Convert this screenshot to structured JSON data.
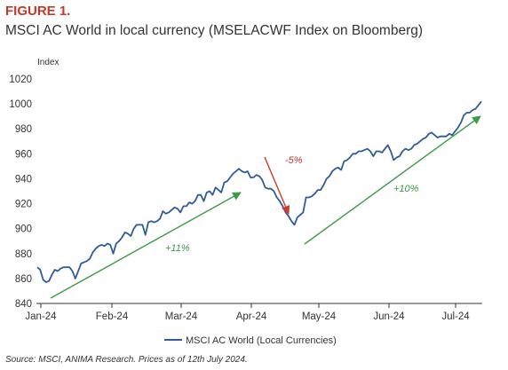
{
  "figure": {
    "label": "FIGURE 1.",
    "title": "MSCI AC World in local currency (MSELACWF Index on Bloomberg)",
    "source": "Source: MSCI, ANIMA Research. Prices as of 12th July 2024."
  },
  "colors": {
    "line": "#2f5b9a",
    "up_arrow": "#3e9a48",
    "down_arrow": "#d03a2e",
    "label_red": "#c0392b"
  },
  "chart_data": {
    "type": "line",
    "ylabel": "Index",
    "ylim": [
      840,
      1020
    ],
    "yticks": [
      840,
      860,
      880,
      900,
      920,
      940,
      960,
      980,
      1000,
      1020
    ],
    "xticks": [
      "Jan-24",
      "Feb-24",
      "Mar-24",
      "Apr-24",
      "May-24",
      "Jun-24",
      "Jul-24"
    ],
    "grid": false,
    "legend": "bottom-center",
    "series": [
      {
        "name": "MSCI AC World (Local Currencies)",
        "values": [
          869,
          867,
          859,
          857,
          858,
          863,
          867,
          866,
          868,
          869,
          869,
          869,
          866,
          860,
          866,
          872,
          873,
          874,
          876,
          881,
          884,
          886,
          887,
          886,
          888,
          887,
          880,
          888,
          890,
          893,
          897,
          896,
          894,
          900,
          903,
          903,
          903,
          895,
          905,
          906,
          905,
          906,
          908,
          914,
          912,
          913,
          915,
          917,
          916,
          913,
          918,
          918,
          921,
          920,
          922,
          927,
          927,
          922,
          929,
          930,
          927,
          933,
          931,
          929,
          937,
          938,
          941,
          944,
          946,
          948,
          946,
          945,
          946,
          941,
          941,
          943,
          942,
          939,
          933,
          932,
          932,
          930,
          925,
          922,
          918,
          913,
          910,
          906,
          903,
          909,
          911,
          913,
          925,
          925,
          926,
          928,
          931,
          931,
          935,
          940,
          942,
          946,
          948,
          949,
          947,
          954,
          955,
          957,
          960,
          960,
          962,
          962,
          963,
          964,
          962,
          958,
          962,
          962,
          961,
          964,
          967,
          962,
          955,
          957,
          958,
          962,
          964,
          963,
          964,
          967,
          968,
          970,
          972,
          973,
          976,
          977,
          975,
          973,
          974,
          974,
          974,
          976,
          975,
          978,
          981,
          985,
          991,
          993,
          993,
          995,
          996,
          999,
          1002
        ]
      }
    ],
    "annotations": [
      {
        "text": "+11%",
        "color": "up",
        "arrow_from": [
          "Jan-24",
          844
        ],
        "arrow_to": [
          "Mar-24 end",
          930
        ]
      },
      {
        "text": "-5%",
        "color": "down",
        "arrow_from": [
          "Apr-24",
          958
        ],
        "arrow_to": [
          "Apr-24 late",
          911
        ]
      },
      {
        "text": "+10%",
        "color": "up",
        "arrow_from": [
          "May-24",
          887
        ],
        "arrow_to": [
          "Jul-24",
          990
        ]
      }
    ]
  }
}
